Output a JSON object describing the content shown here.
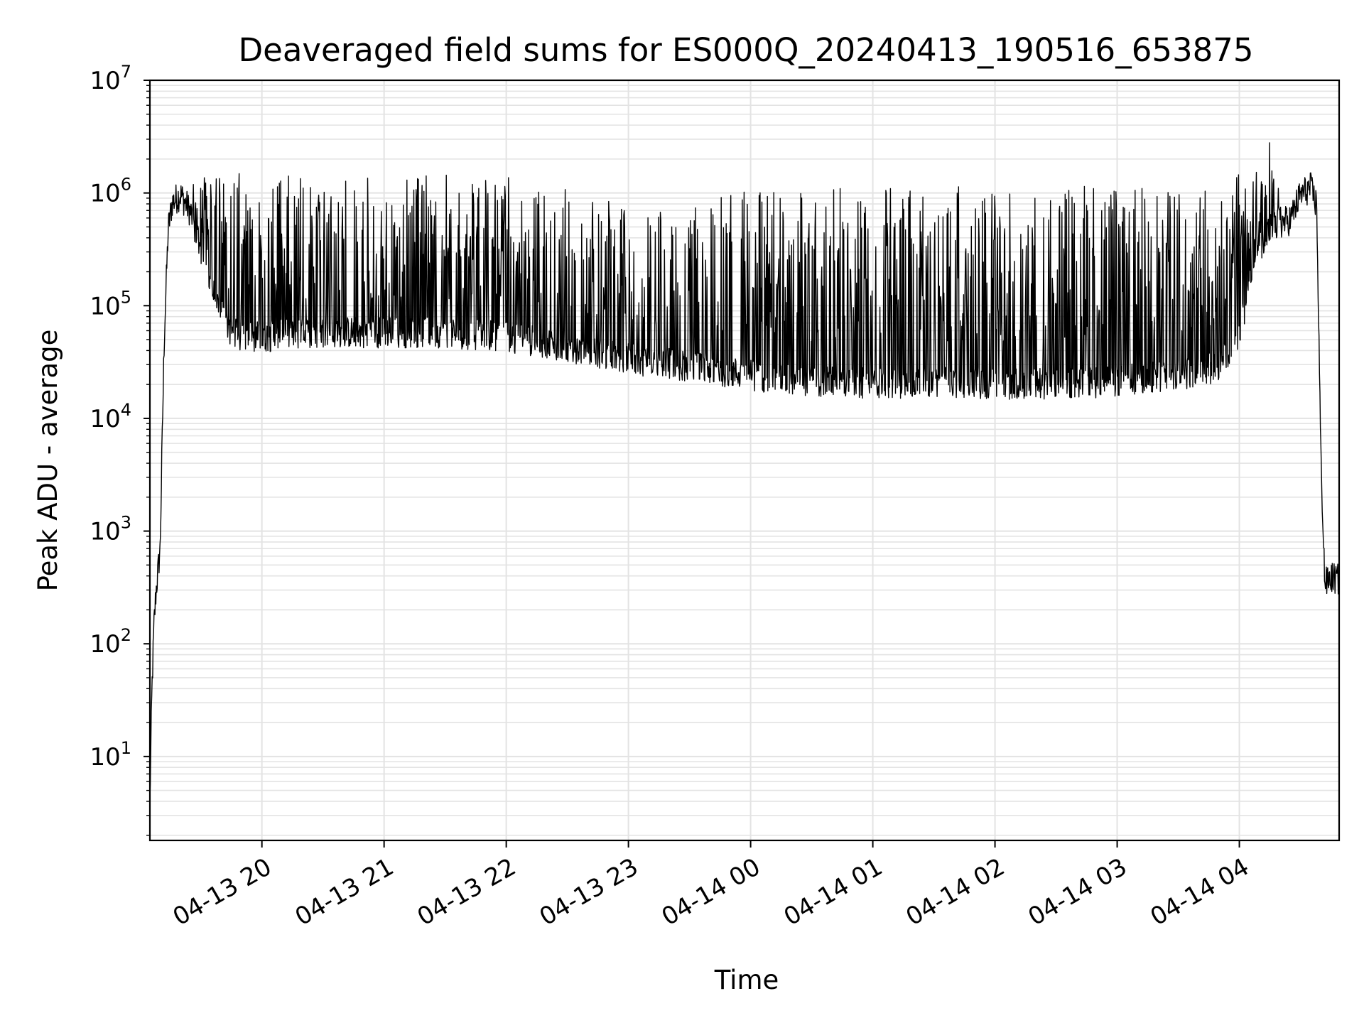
{
  "chart_data": {
    "type": "line",
    "title": "Deaveraged field sums for ES000Q_20240413_190516_653875",
    "xlabel": "Time",
    "ylabel": "Peak ADU - average",
    "y_scale": "log",
    "ylim": [
      1.8,
      10000000
    ],
    "xlim": [
      "2024-04-13 19:05",
      "2024-04-14 04:49"
    ],
    "grid": true,
    "line_color": "#000000",
    "grid_color": "#e3e3e3",
    "x_ticks": [
      {
        "label": "04-13 20",
        "value": "2024-04-13 20:00"
      },
      {
        "label": "04-13 21",
        "value": "2024-04-13 21:00"
      },
      {
        "label": "04-13 22",
        "value": "2024-04-13 22:00"
      },
      {
        "label": "04-13 23",
        "value": "2024-04-13 23:00"
      },
      {
        "label": "04-14 00",
        "value": "2024-04-14 00:00"
      },
      {
        "label": "04-14 01",
        "value": "2024-04-14 01:00"
      },
      {
        "label": "04-14 02",
        "value": "2024-04-14 02:00"
      },
      {
        "label": "04-14 03",
        "value": "2024-04-14 03:00"
      },
      {
        "label": "04-14 04",
        "value": "2024-04-14 04:00"
      }
    ],
    "y_ticks": [
      {
        "base": "10",
        "exp": "1",
        "value": 10
      },
      {
        "base": "10",
        "exp": "2",
        "value": 100
      },
      {
        "base": "10",
        "exp": "3",
        "value": 1000
      },
      {
        "base": "10",
        "exp": "4",
        "value": 10000
      },
      {
        "base": "10",
        "exp": "5",
        "value": 100000
      },
      {
        "base": "10",
        "exp": "6",
        "value": 1000000
      },
      {
        "base": "10",
        "exp": "7",
        "value": 10000000
      }
    ],
    "series": [
      {
        "envelope": {
          "x": [
            "2024-04-13 19:05",
            "2024-04-13 19:06",
            "2024-04-13 19:07",
            "2024-04-13 19:08",
            "2024-04-13 19:10",
            "2024-04-13 19:12",
            "2024-04-13 19:14",
            "2024-04-13 19:16",
            "2024-04-13 19:20",
            "2024-04-13 19:25",
            "2024-04-13 19:30",
            "2024-04-13 19:35",
            "2024-04-13 19:40",
            "2024-04-13 19:45",
            "2024-04-13 19:50",
            "2024-04-13 20:00",
            "2024-04-13 20:30",
            "2024-04-13 21:00",
            "2024-04-13 21:30",
            "2024-04-13 22:00",
            "2024-04-13 22:30",
            "2024-04-13 23:00",
            "2024-04-13 23:30",
            "2024-04-14 00:00",
            "2024-04-14 00:30",
            "2024-04-14 01:00",
            "2024-04-14 01:30",
            "2024-04-14 02:00",
            "2024-04-14 02:30",
            "2024-04-14 03:00",
            "2024-04-14 03:30",
            "2024-04-14 03:50",
            "2024-04-14 04:00",
            "2024-04-14 04:05",
            "2024-04-14 04:10",
            "2024-04-14 04:15",
            "2024-04-14 04:20",
            "2024-04-14 04:25",
            "2024-04-14 04:30",
            "2024-04-14 04:35",
            "2024-04-14 04:38",
            "2024-04-14 04:40",
            "2024-04-14 04:42",
            "2024-04-14 04:45",
            "2024-04-14 04:49"
          ],
          "baseline": [
            4,
            40,
            150,
            300,
            700,
            50000,
            500000,
            850000,
            1000000,
            700000,
            300000,
            150000,
            90000,
            60000,
            55000,
            55000,
            60000,
            60000,
            60000,
            55000,
            45000,
            35000,
            30000,
            25000,
            22000,
            21000,
            22000,
            21000,
            21000,
            22000,
            25000,
            30000,
            60000,
            150000,
            350000,
            500000,
            550000,
            600000,
            1000000,
            1150000,
            800000,
            5000,
            350,
            400,
            380
          ],
          "spike_peak": [
            4,
            40,
            150,
            300,
            700,
            50000,
            500000,
            850000,
            1000000,
            1400000,
            1500000,
            1500000,
            1500000,
            1500000,
            1500000,
            1500000,
            1500000,
            1450000,
            1450000,
            1400000,
            1300000,
            700000,
            800000,
            1100000,
            1100000,
            1150000,
            1150000,
            1150000,
            1150000,
            1150000,
            1100000,
            1200000,
            1500000,
            1700000,
            1700000,
            5500000,
            1400000,
            1200000,
            1150000,
            1150000,
            800000,
            5000,
            700,
            650,
            500
          ]
        }
      }
    ]
  }
}
